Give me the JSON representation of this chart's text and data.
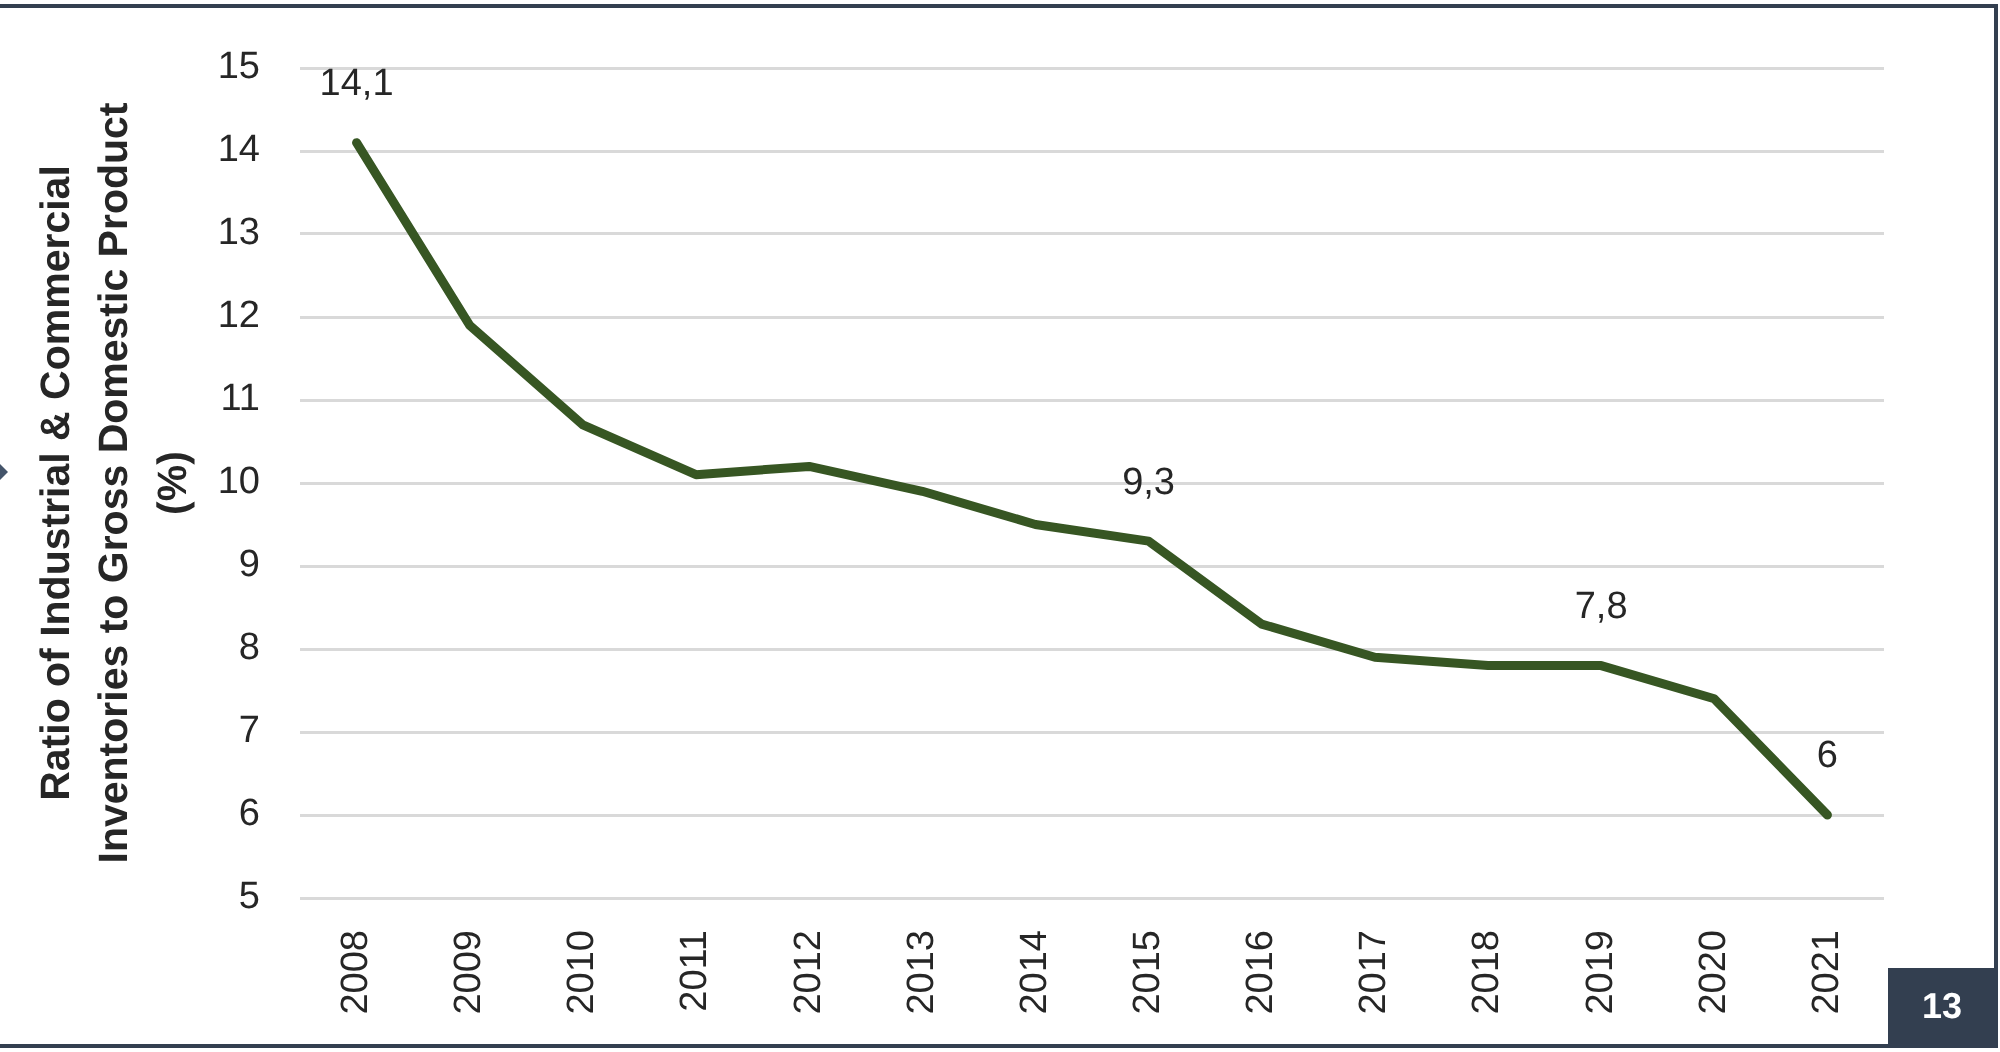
{
  "chart_data": {
    "type": "line",
    "ylabel": "Ratio of Industrial & Commercial\nInventories to Gross Domestic Product\n(%)",
    "categories": [
      "2008",
      "2009",
      "2010",
      "2011",
      "2012",
      "2013",
      "2014",
      "2015",
      "2016",
      "2017",
      "2018",
      "2019",
      "2020",
      "2021"
    ],
    "series": [
      {
        "color": "#375623",
        "values": [
          14.1,
          11.9,
          10.7,
          10.1,
          10.2,
          9.9,
          9.5,
          9.3,
          8.3,
          7.9,
          7.8,
          7.8,
          7.4,
          6
        ],
        "value_labels": [
          "14,1",
          null,
          null,
          null,
          null,
          null,
          null,
          "9,3",
          null,
          null,
          null,
          "7,8",
          null,
          "6"
        ]
      }
    ],
    "ylim": [
      5,
      15
    ],
    "yticks": [
      5,
      6,
      7,
      8,
      9,
      10,
      11,
      12,
      13,
      14,
      15
    ],
    "grid": "y",
    "marker": "none",
    "line_style": "solid",
    "annotations": [
      "13"
    ]
  }
}
